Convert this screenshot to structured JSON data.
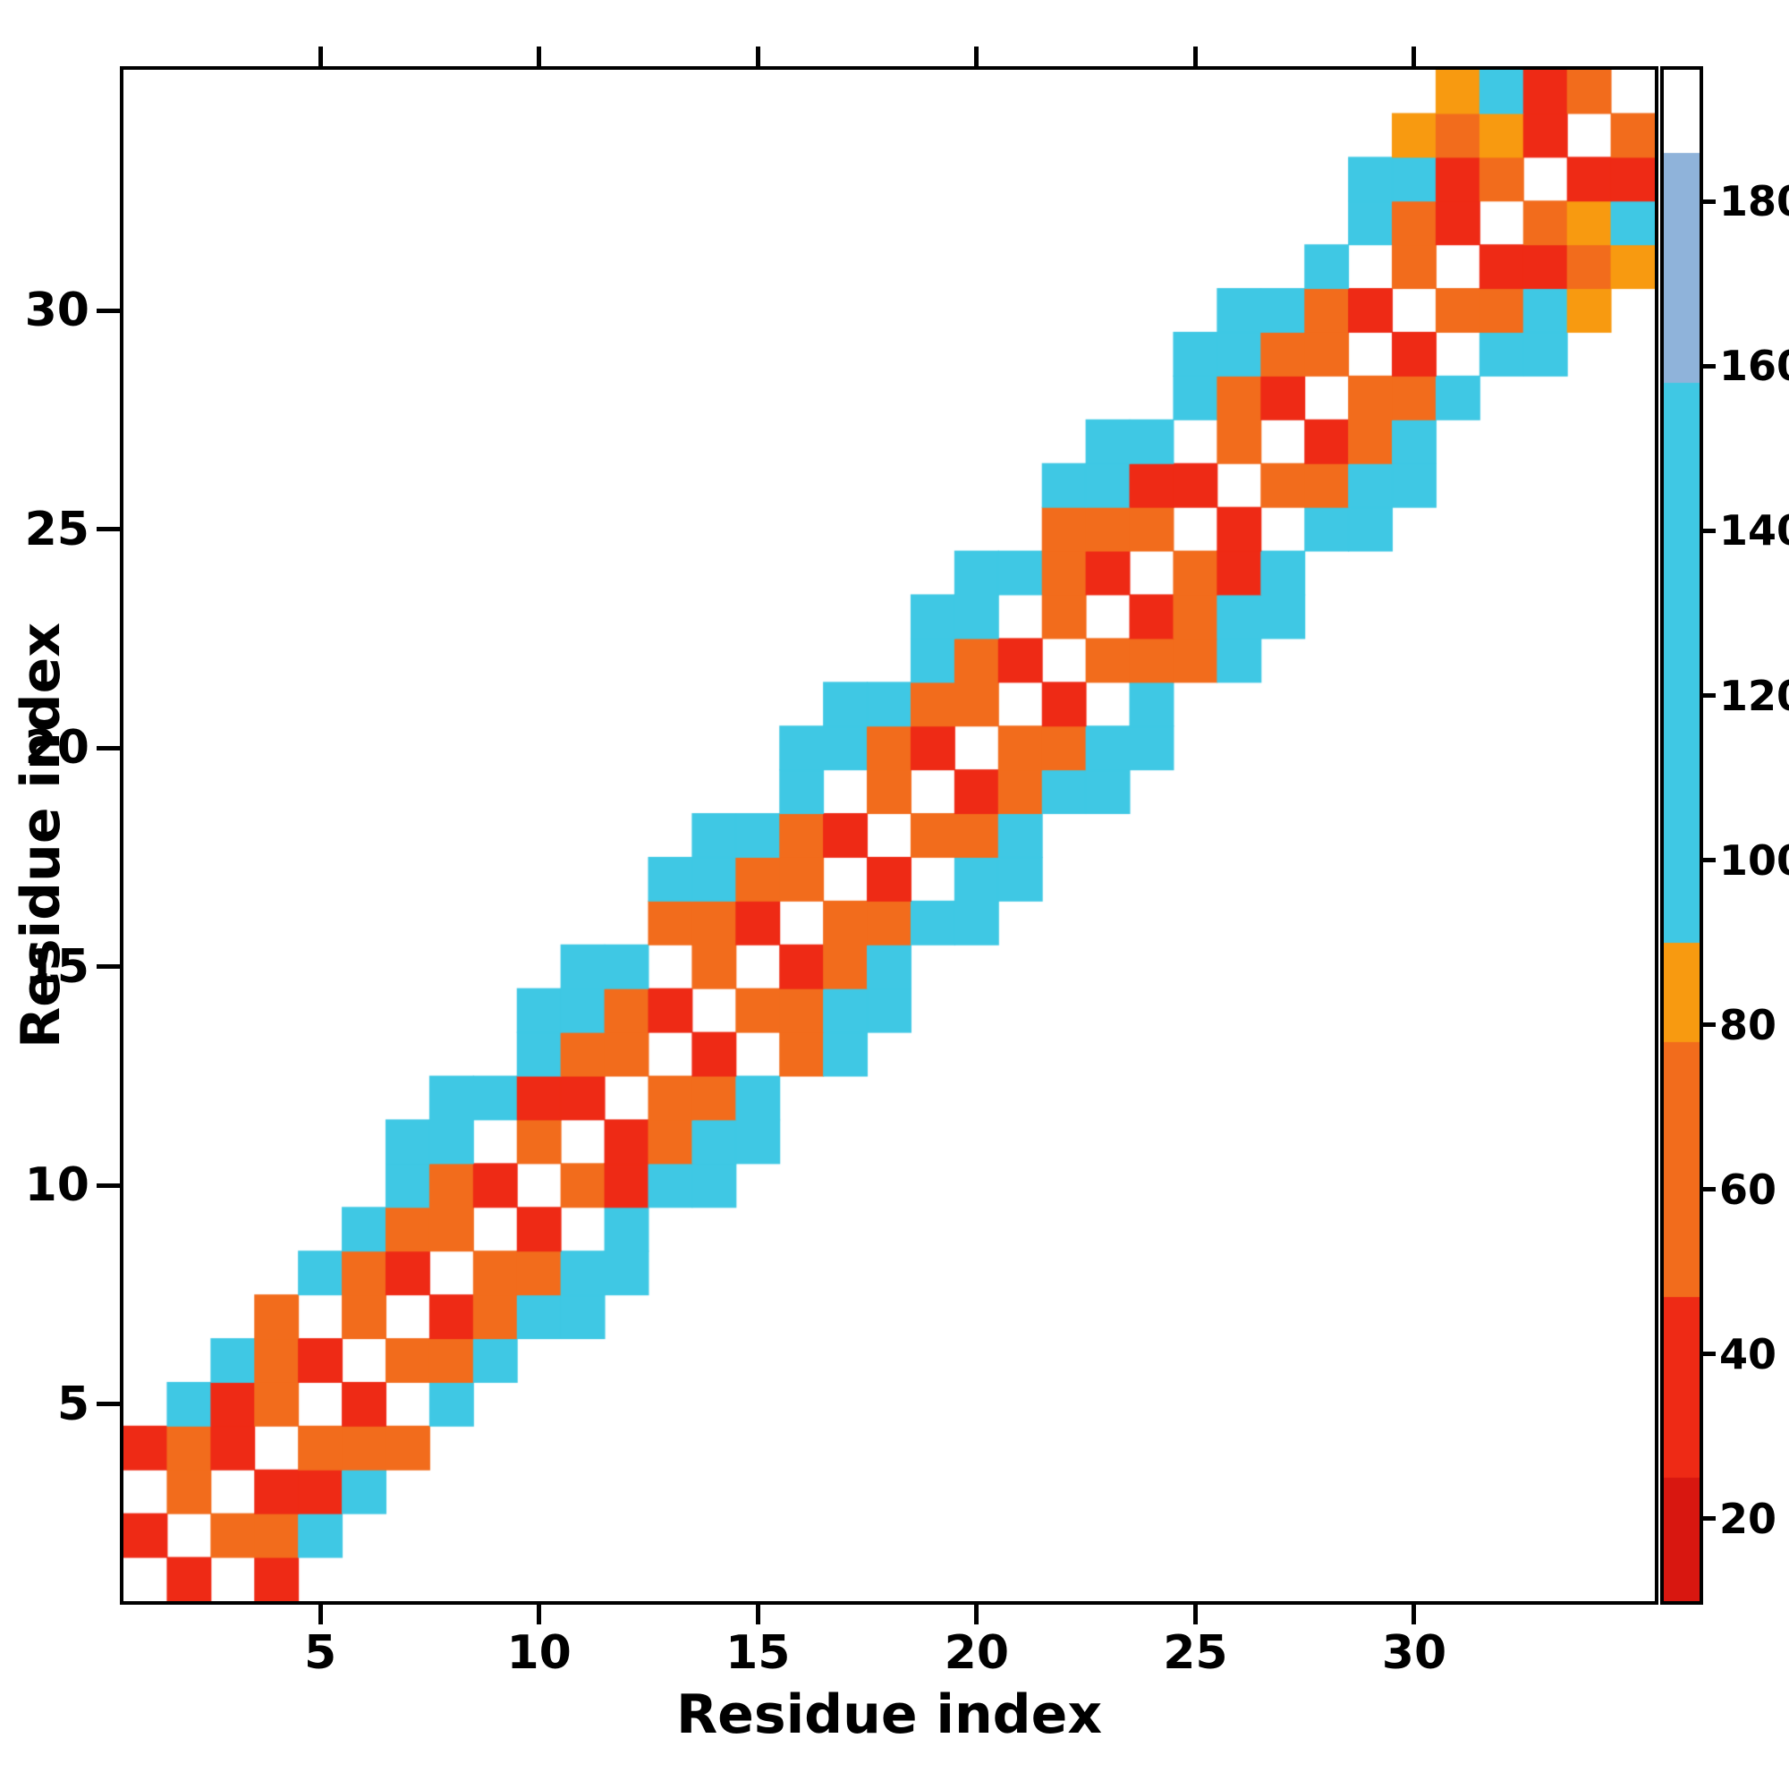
{
  "chart_data": {
    "type": "heatmap",
    "title": "",
    "xlabel": "Residue index",
    "ylabel": "Residue index",
    "background": "#ffffff",
    "n": 35,
    "x_range": [
      1,
      35
    ],
    "y_range": [
      1,
      35
    ],
    "x_ticks": [
      5,
      10,
      15,
      20,
      25,
      30
    ],
    "y_ticks": [
      5,
      10,
      15,
      20,
      25,
      30
    ],
    "grid": false,
    "legend_position": "right-colorbar",
    "colorbar": {
      "min": 10,
      "max": 196,
      "ticks": [
        20,
        40,
        60,
        80,
        100,
        120,
        140,
        160,
        180
      ],
      "stops": [
        {
          "upto": 25,
          "color": "#d81710"
        },
        {
          "upto": 47,
          "color": "#ee2a15"
        },
        {
          "upto": 78,
          "color": "#f26c1c"
        },
        {
          "upto": 90,
          "color": "#f89a10"
        },
        {
          "upto": 158,
          "color": "#3fc8e4"
        },
        {
          "upto": 186,
          "color": "#8fb3da"
        },
        {
          "upto": 196,
          "color": "#ffffff"
        }
      ]
    },
    "symmetric": true,
    "empty_value": 0,
    "cells": [
      [
        1,
        2,
        30
      ],
      [
        2,
        3,
        62
      ],
      [
        3,
        4,
        30
      ],
      [
        4,
        5,
        62
      ],
      [
        5,
        6,
        30
      ],
      [
        6,
        7,
        62
      ],
      [
        7,
        8,
        30
      ],
      [
        8,
        9,
        62
      ],
      [
        9,
        10,
        30
      ],
      [
        10,
        11,
        62
      ],
      [
        11,
        12,
        30
      ],
      [
        12,
        13,
        62
      ],
      [
        13,
        14,
        30
      ],
      [
        14,
        15,
        62
      ],
      [
        15,
        16,
        30
      ],
      [
        16,
        17,
        62
      ],
      [
        17,
        18,
        30
      ],
      [
        18,
        19,
        62
      ],
      [
        19,
        20,
        30
      ],
      [
        20,
        21,
        62
      ],
      [
        21,
        22,
        30
      ],
      [
        22,
        23,
        62
      ],
      [
        23,
        24,
        30
      ],
      [
        24,
        25,
        62
      ],
      [
        25,
        26,
        30
      ],
      [
        26,
        27,
        62
      ],
      [
        27,
        28,
        30
      ],
      [
        28,
        29,
        62
      ],
      [
        29,
        30,
        30
      ],
      [
        30,
        31,
        62
      ],
      [
        31,
        32,
        30
      ],
      [
        32,
        33,
        62
      ],
      [
        33,
        34,
        30
      ],
      [
        34,
        35,
        62
      ],
      [
        2,
        4,
        65
      ],
      [
        3,
        5,
        28
      ],
      [
        4,
        6,
        65
      ],
      [
        6,
        8,
        65
      ],
      [
        7,
        9,
        65
      ],
      [
        8,
        10,
        65
      ],
      [
        10,
        12,
        28
      ],
      [
        11,
        13,
        65
      ],
      [
        12,
        14,
        65
      ],
      [
        14,
        16,
        65
      ],
      [
        15,
        17,
        65
      ],
      [
        16,
        18,
        65
      ],
      [
        18,
        20,
        65
      ],
      [
        19,
        21,
        65
      ],
      [
        20,
        22,
        65
      ],
      [
        22,
        24,
        65
      ],
      [
        23,
        25,
        65
      ],
      [
        24,
        26,
        28
      ],
      [
        26,
        28,
        65
      ],
      [
        27,
        29,
        65
      ],
      [
        28,
        30,
        65
      ],
      [
        30,
        32,
        65
      ],
      [
        31,
        33,
        28
      ],
      [
        32,
        34,
        85
      ],
      [
        33,
        35,
        30
      ],
      [
        1,
        4,
        30
      ],
      [
        2,
        5,
        108
      ],
      [
        3,
        6,
        108
      ],
      [
        4,
        7,
        70
      ],
      [
        5,
        8,
        108
      ],
      [
        6,
        9,
        108
      ],
      [
        7,
        10,
        108
      ],
      [
        8,
        11,
        108
      ],
      [
        9,
        12,
        108
      ],
      [
        10,
        13,
        108
      ],
      [
        11,
        14,
        108
      ],
      [
        12,
        15,
        108
      ],
      [
        13,
        16,
        70
      ],
      [
        14,
        17,
        108
      ],
      [
        15,
        18,
        108
      ],
      [
        16,
        19,
        108
      ],
      [
        17,
        20,
        108
      ],
      [
        18,
        21,
        108
      ],
      [
        19,
        22,
        108
      ],
      [
        20,
        23,
        108
      ],
      [
        21,
        24,
        108
      ],
      [
        22,
        25,
        70
      ],
      [
        23,
        26,
        108
      ],
      [
        24,
        27,
        108
      ],
      [
        25,
        28,
        108
      ],
      [
        26,
        29,
        108
      ],
      [
        27,
        30,
        108
      ],
      [
        28,
        31,
        108
      ],
      [
        29,
        32,
        108
      ],
      [
        30,
        33,
        108
      ],
      [
        31,
        34,
        70
      ],
      [
        32,
        35,
        108
      ],
      [
        7,
        11,
        110
      ],
      [
        8,
        12,
        110
      ],
      [
        10,
        14,
        110
      ],
      [
        11,
        15,
        110
      ],
      [
        13,
        17,
        110
      ],
      [
        14,
        18,
        110
      ],
      [
        16,
        20,
        110
      ],
      [
        17,
        21,
        110
      ],
      [
        19,
        23,
        110
      ],
      [
        20,
        24,
        110
      ],
      [
        22,
        26,
        110
      ],
      [
        23,
        27,
        110
      ],
      [
        25,
        29,
        110
      ],
      [
        26,
        30,
        110
      ],
      [
        29,
        33,
        110
      ],
      [
        30,
        34,
        80
      ],
      [
        31,
        35,
        85
      ]
    ]
  },
  "layout_labels": {
    "x_axis": "Residue index",
    "y_axis": "Residue index"
  }
}
